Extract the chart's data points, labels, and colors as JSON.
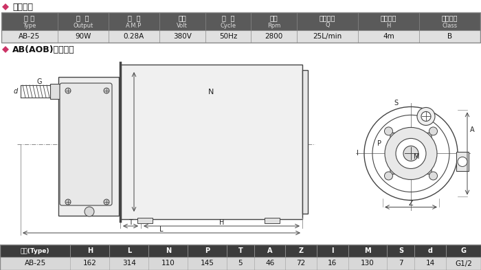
{
  "title1": "◆ 技术参数",
  "title2": "◆ AB(AOB)安装尺寸",
  "tech_headers_cn": [
    "型 号",
    "功  率",
    "电  流",
    "电压",
    "频  率",
    "转速",
    "最大流量",
    "最大扬程",
    "络缘等级"
  ],
  "tech_headers_en": [
    "Type",
    "Output",
    "A.M.P",
    "Volt",
    "Cycle",
    "Rpm",
    "Q",
    "H",
    "Class"
  ],
  "tech_values": [
    "AB-25",
    "90W",
    "0.28A",
    "380V",
    "50Hz",
    "2800",
    "25L/min",
    "4m",
    "B"
  ],
  "dim_headers": [
    "型号(Type)",
    "H",
    "L",
    "N",
    "P",
    "T",
    "A",
    "Z",
    "I",
    "M",
    "S",
    "d",
    "G"
  ],
  "dim_values": [
    "AB-25",
    "162",
    "314",
    "110",
    "145",
    "5",
    "46",
    "72",
    "16",
    "130",
    "7",
    "14",
    "G1/2"
  ],
  "bg_color": "#ffffff",
  "table_header_bg": "#5a5a5a",
  "table_header_fg": "#ffffff",
  "table_data_bg": "#e0e0e0",
  "table_data_fg": "#111111",
  "dim_header_bg": "#3c3c3c",
  "dim_data_bg": "#d8d8d8",
  "draw_color": "#444444",
  "draw_light": "#888888",
  "draw_bg": "#ffffff",
  "diamond_color": "#cc3366"
}
